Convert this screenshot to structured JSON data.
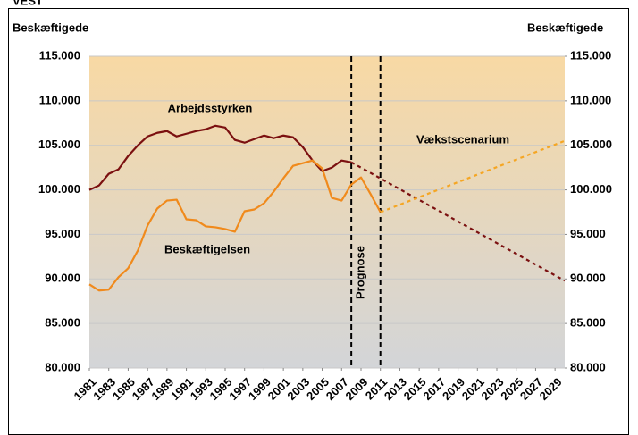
{
  "chart_data": {
    "type": "line",
    "title": "VEST",
    "y_label": "Beskæftigede",
    "y2_label": "Beskæftigede",
    "xlim": [
      1981,
      2030
    ],
    "xticks": [
      1981,
      1983,
      1985,
      1987,
      1989,
      1991,
      1993,
      1995,
      1997,
      1999,
      2001,
      2003,
      2005,
      2007,
      2009,
      2011,
      2013,
      2015,
      2017,
      2019,
      2021,
      2023,
      2025,
      2027,
      2029
    ],
    "ylim": [
      80000,
      115000
    ],
    "yticks": [
      {
        "value": 80000,
        "label": "80.000"
      },
      {
        "value": 85000,
        "label": "85.000"
      },
      {
        "value": 90000,
        "label": "90.000"
      },
      {
        "value": 95000,
        "label": "95.000"
      },
      {
        "value": 100000,
        "label": "100.000"
      },
      {
        "value": 105000,
        "label": "105.000"
      },
      {
        "value": 110000,
        "label": "110.000"
      },
      {
        "value": 115000,
        "label": "115.000"
      }
    ],
    "y2lim": [
      80000,
      115000
    ],
    "y2ticks": [
      {
        "value": 80000,
        "label": "80.000"
      },
      {
        "value": 85000,
        "label": "85.000"
      },
      {
        "value": 90000,
        "label": "90.000"
      },
      {
        "value": 95000,
        "label": "95.000"
      },
      {
        "value": 100000,
        "label": "100.000"
      },
      {
        "value": 105000,
        "label": "105.000"
      },
      {
        "value": 110000,
        "label": "110.000"
      },
      {
        "value": 115000,
        "label": "115.000"
      }
    ],
    "grid": true,
    "vlines": [
      2008,
      2011
    ],
    "series": [
      {
        "name": "Arbejdsstyrken",
        "color": "#7b1010",
        "dash_color": "#7b1010",
        "dashed_from": 2008,
        "x": [
          1981,
          1982,
          1983,
          1984,
          1985,
          1986,
          1987,
          1988,
          1989,
          1990,
          1991,
          1992,
          1993,
          1994,
          1995,
          1996,
          1997,
          1998,
          1999,
          2000,
          2001,
          2002,
          2003,
          2004,
          2005,
          2006,
          2007,
          2008,
          2030
        ],
        "values": [
          100000,
          100500,
          101800,
          102300,
          103800,
          105000,
          106000,
          106400,
          106600,
          106000,
          106300,
          106600,
          106800,
          107200,
          107000,
          105600,
          105300,
          105700,
          106100,
          105800,
          106100,
          105900,
          104800,
          103300,
          102100,
          102500,
          103300,
          103100,
          89800
        ]
      },
      {
        "name": "Beskæftigelsen",
        "color": "#f08a1c",
        "dash_color": "#f5a623",
        "dashed_from": 2011,
        "x": [
          1981,
          1982,
          1983,
          1984,
          1985,
          1986,
          1987,
          1988,
          1989,
          1990,
          1991,
          1992,
          1993,
          1994,
          1995,
          1996,
          1997,
          1998,
          1999,
          2000,
          2001,
          2002,
          2003,
          2004,
          2005,
          2006,
          2007,
          2008,
          2009,
          2010,
          2011,
          2030
        ],
        "values": [
          89400,
          88700,
          88800,
          90200,
          91200,
          93200,
          96000,
          97900,
          98800,
          98900,
          96700,
          96600,
          95900,
          95800,
          95600,
          95300,
          97600,
          97800,
          98500,
          99800,
          101300,
          102700,
          103000,
          103300,
          102400,
          99100,
          98800,
          100600,
          101400,
          99500,
          97500,
          105500
        ]
      }
    ],
    "annotations": [
      "Arbejdsstyrken",
      "Beskæftigelsen",
      "Vækstscenarium",
      "Prognose"
    ]
  }
}
